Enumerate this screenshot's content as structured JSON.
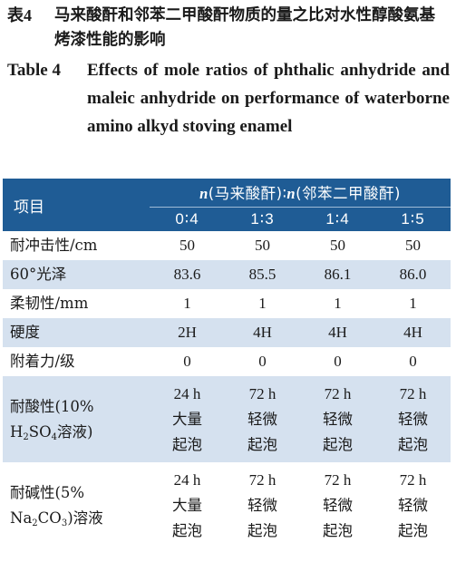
{
  "caption_cn": {
    "number": "表4",
    "text": "马来酸酐和邻苯二甲酸酐物质的量之比对水性醇酸氨基烤漆性能的影响"
  },
  "caption_en": {
    "number": "Table 4",
    "text": "Effects of mole ratios of phthalic anhydride and maleic anhydride on performance of waterborne amino alkyd stoving enamel"
  },
  "table": {
    "row_header": "项目",
    "group_n1": "n",
    "group_mid": "(马来酸酐)∶",
    "group_n2": "n",
    "group_end": "(邻苯二甲酸酐)",
    "ratios": [
      "0∶4",
      "1∶3",
      "1∶4",
      "1∶5"
    ],
    "rows": [
      {
        "label": "耐冲击性/cm",
        "values": [
          "50",
          "50",
          "50",
          "50"
        ]
      },
      {
        "label": "60°光泽",
        "values": [
          "83.6",
          "85.5",
          "86.1",
          "86.0"
        ]
      },
      {
        "label": "柔韧性/mm",
        "values": [
          "1",
          "1",
          "1",
          "1"
        ]
      },
      {
        "label": "硬度",
        "values": [
          "2H",
          "4H",
          "4H",
          "4H"
        ]
      },
      {
        "label": "附着力/级",
        "values": [
          "0",
          "0",
          "0",
          "0"
        ]
      }
    ],
    "acid": {
      "label_a": "耐酸性(10%",
      "label_b1": "H",
      "label_b_sub1": "2",
      "label_b2": "SO",
      "label_b_sub2": "4",
      "label_b3": "溶液)",
      "cells": [
        [
          "24 h",
          "大量",
          "起泡"
        ],
        [
          "72 h",
          "轻微",
          "起泡"
        ],
        [
          "72 h",
          "轻微",
          "起泡"
        ],
        [
          "72 h",
          "轻微",
          "起泡"
        ]
      ]
    },
    "alkali": {
      "label_a": "耐碱性(5%",
      "label_b1": "Na",
      "label_b_sub1": "2",
      "label_b2": "CO",
      "label_b_sub2": "3",
      "label_b3": ")溶液",
      "cells": [
        [
          "24 h",
          "大量",
          "起泡"
        ],
        [
          "72 h",
          "轻微",
          "起泡"
        ],
        [
          "72 h",
          "轻微",
          "起泡"
        ],
        [
          "72 h",
          "轻微",
          "起泡"
        ]
      ]
    }
  },
  "colors": {
    "header_bg": "#1f5c95",
    "stripe_bg": "#d5e1ef"
  }
}
